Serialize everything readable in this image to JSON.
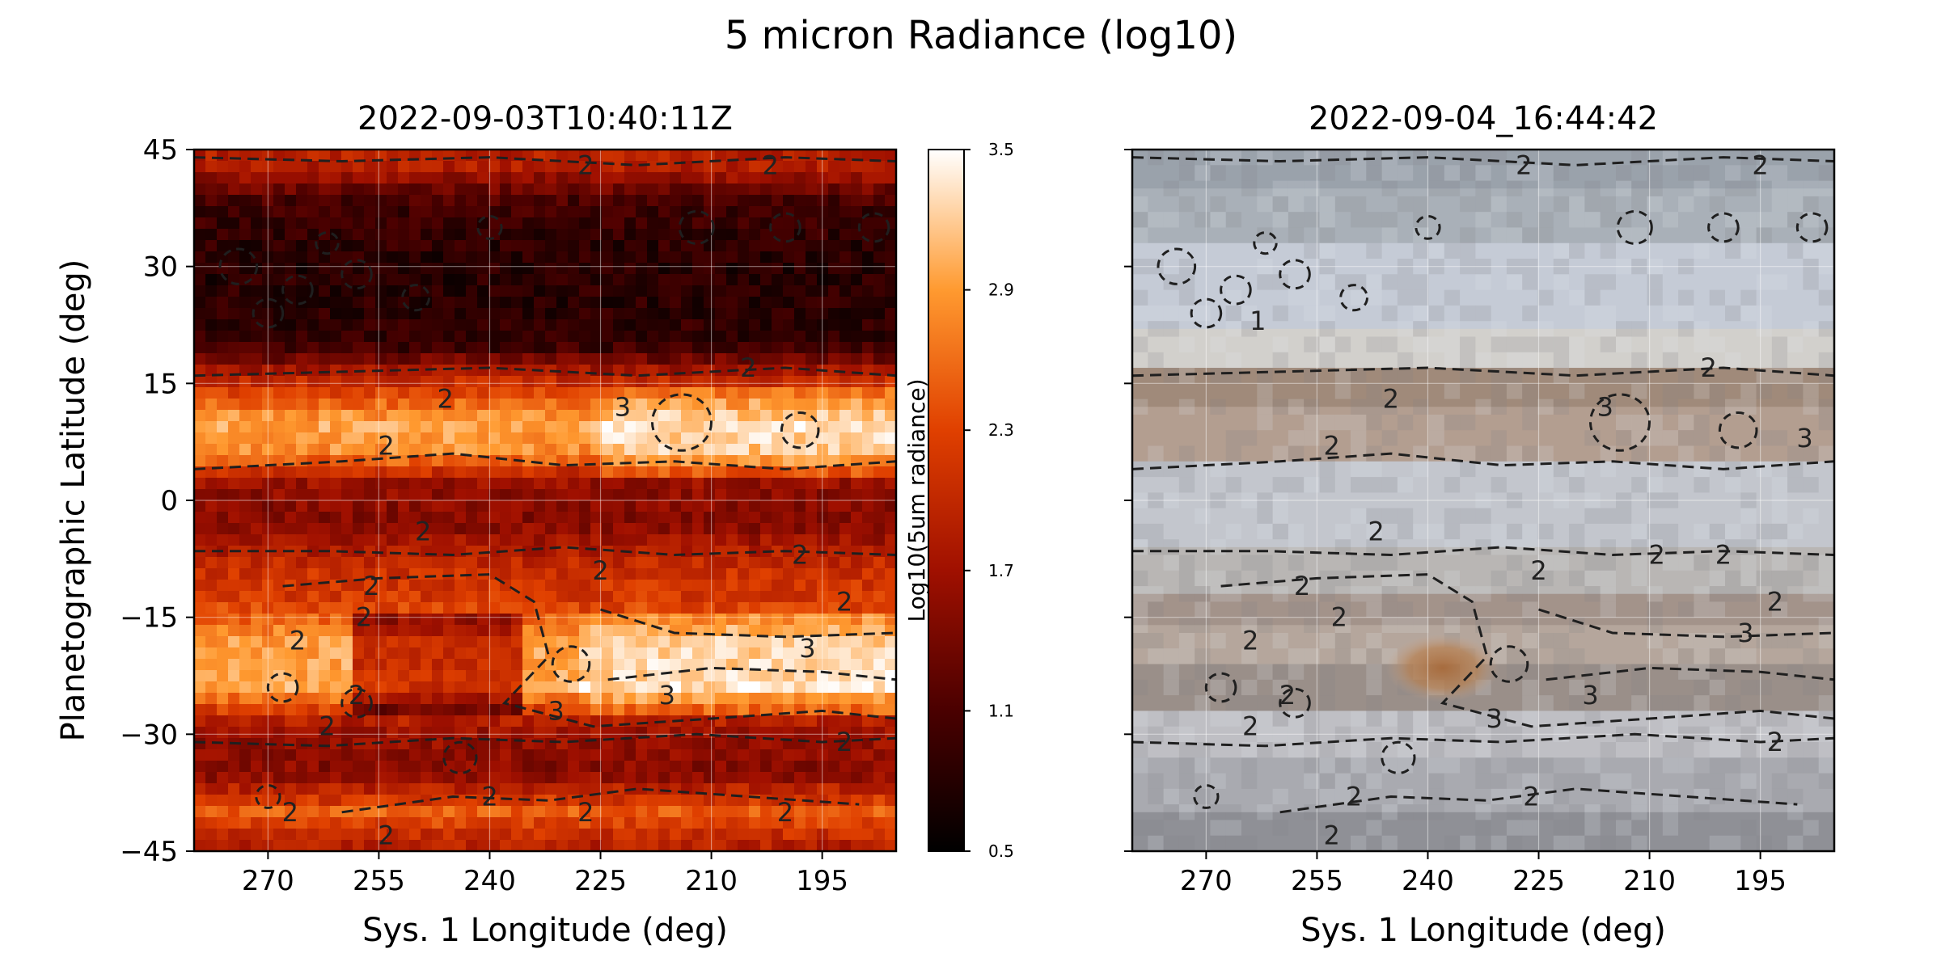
{
  "chart_data": {
    "type": "heatmap",
    "title": "5 micron Radiance (log10)",
    "panels": [
      {
        "title": "2022-09-03T10:40:11Z",
        "xlabel": "Sys. 1 Longitude (deg)",
        "ylabel": "Planetographic Latitude (deg)",
        "xlim": [
          280,
          185
        ],
        "ylim": [
          -45,
          45
        ],
        "xticks": [
          270,
          255,
          240,
          225,
          210,
          195
        ],
        "yticks": [
          45,
          30,
          15,
          0,
          -15,
          -30,
          -45
        ],
        "grid": true,
        "colormap": "gist_heat",
        "colorbar": {
          "label": "Log10(5um radiance)",
          "ticks": [
            "3.5",
            "2.9",
            "2.3",
            "1.7",
            "1.1",
            "0.5"
          ],
          "range": [
            0.5,
            3.5
          ]
        },
        "contour_levels": [
          {
            "label": "1",
            "value": 1
          },
          {
            "label": "2",
            "value": 2
          },
          {
            "label": "3",
            "value": 3
          }
        ]
      },
      {
        "title": "2022-09-04_16:44:42",
        "xlabel": "Sys. 1 Longitude (deg)",
        "xlim": [
          280,
          185
        ],
        "ylim": [
          -45,
          45
        ],
        "xticks": [
          270,
          255,
          240,
          225,
          210,
          195
        ],
        "grid": true,
        "background": "visible-light image",
        "contour_levels": [
          {
            "label": "1",
            "value": 1
          },
          {
            "label": "2",
            "value": 2
          },
          {
            "label": "3",
            "value": 3
          }
        ]
      }
    ],
    "bands": [
      {
        "lat": 43,
        "value": 1.9
      },
      {
        "lat": 38,
        "value": 1.0
      },
      {
        "lat": 30,
        "value": 0.8
      },
      {
        "lat": 20,
        "value": 0.9
      },
      {
        "lat": 16,
        "value": 1.9
      },
      {
        "lat": 10,
        "value": 3.0
      },
      {
        "lat": 6,
        "value": 2.8
      },
      {
        "lat": 2,
        "value": 1.6
      },
      {
        "lat": -3,
        "value": 1.5
      },
      {
        "lat": -9,
        "value": 2.1
      },
      {
        "lat": -13,
        "value": 2.2
      },
      {
        "lat": -18,
        "value": 2.9
      },
      {
        "lat": -24,
        "value": 3.0
      },
      {
        "lat": -29,
        "value": 1.7
      },
      {
        "lat": -35,
        "value": 1.5
      },
      {
        "lat": -40,
        "value": 2.5
      },
      {
        "lat": -44,
        "value": 1.9
      }
    ],
    "contour_labels": [
      {
        "panel": 0,
        "lon": 222,
        "lat": 12,
        "text": "3"
      },
      {
        "panel": 0,
        "lon": 216,
        "lat": -25,
        "text": "3"
      },
      {
        "panel": 0,
        "lon": 197,
        "lat": -19,
        "text": "3"
      },
      {
        "panel": 0,
        "lon": 231,
        "lat": -27,
        "text": "3"
      },
      {
        "panel": 0,
        "lon": 246,
        "lat": 13,
        "text": "2"
      },
      {
        "panel": 0,
        "lon": 254,
        "lat": 7,
        "text": "2"
      },
      {
        "panel": 0,
        "lon": 205,
        "lat": 17,
        "text": "2"
      },
      {
        "panel": 0,
        "lon": 249,
        "lat": -4,
        "text": "2"
      },
      {
        "panel": 0,
        "lon": 225,
        "lat": -9,
        "text": "2"
      },
      {
        "panel": 0,
        "lon": 198,
        "lat": -7,
        "text": "2"
      },
      {
        "panel": 0,
        "lon": 256,
        "lat": -11,
        "text": "2"
      },
      {
        "panel": 0,
        "lon": 257,
        "lat": -15,
        "text": "2"
      },
      {
        "panel": 0,
        "lon": 266,
        "lat": -18,
        "text": "2"
      },
      {
        "panel": 0,
        "lon": 258,
        "lat": -25,
        "text": "2"
      },
      {
        "panel": 0,
        "lon": 262,
        "lat": -29,
        "text": "2"
      },
      {
        "panel": 0,
        "lon": 192,
        "lat": -13,
        "text": "2"
      },
      {
        "panel": 0,
        "lon": 192,
        "lat": -31,
        "text": "2"
      },
      {
        "panel": 0,
        "lon": 240,
        "lat": -38,
        "text": "2"
      },
      {
        "panel": 0,
        "lon": 227,
        "lat": -40,
        "text": "2"
      },
      {
        "panel": 0,
        "lon": 200,
        "lat": -40,
        "text": "2"
      },
      {
        "panel": 0,
        "lon": 267,
        "lat": -40,
        "text": "2"
      },
      {
        "panel": 0,
        "lon": 254,
        "lat": -43,
        "text": "2"
      },
      {
        "panel": 0,
        "lon": 227,
        "lat": 43,
        "text": "2"
      },
      {
        "panel": 0,
        "lon": 202,
        "lat": 43,
        "text": "2"
      },
      {
        "panel": 1,
        "lon": 202,
        "lat": 17,
        "text": "2"
      },
      {
        "panel": 1,
        "lon": 245,
        "lat": 13,
        "text": "2"
      },
      {
        "panel": 1,
        "lon": 216,
        "lat": 12,
        "text": "3"
      },
      {
        "panel": 1,
        "lon": 253,
        "lat": 7,
        "text": "2"
      },
      {
        "panel": 1,
        "lon": 189,
        "lat": 8,
        "text": "3"
      },
      {
        "panel": 1,
        "lon": 247,
        "lat": -4,
        "text": "2"
      },
      {
        "panel": 1,
        "lon": 209,
        "lat": -7,
        "text": "2"
      },
      {
        "panel": 1,
        "lon": 225,
        "lat": -9,
        "text": "2"
      },
      {
        "panel": 1,
        "lon": 200,
        "lat": -7,
        "text": "2"
      },
      {
        "panel": 1,
        "lon": 257,
        "lat": -11,
        "text": "2"
      },
      {
        "panel": 1,
        "lon": 264,
        "lat": -18,
        "text": "2"
      },
      {
        "panel": 1,
        "lon": 252,
        "lat": -15,
        "text": "2"
      },
      {
        "panel": 1,
        "lon": 193,
        "lat": -13,
        "text": "2"
      },
      {
        "panel": 1,
        "lon": 197,
        "lat": -17,
        "text": "3"
      },
      {
        "panel": 1,
        "lon": 218,
        "lat": -25,
        "text": "3"
      },
      {
        "panel": 1,
        "lon": 259,
        "lat": -25,
        "text": "2"
      },
      {
        "panel": 1,
        "lon": 264,
        "lat": -29,
        "text": "2"
      },
      {
        "panel": 1,
        "lon": 193,
        "lat": -31,
        "text": "2"
      },
      {
        "panel": 1,
        "lon": 231,
        "lat": -28,
        "text": "3"
      },
      {
        "panel": 1,
        "lon": 226,
        "lat": -38,
        "text": "2"
      },
      {
        "panel": 1,
        "lon": 253,
        "lat": -43,
        "text": "2"
      },
      {
        "panel": 1,
        "lon": 250,
        "lat": -38,
        "text": "2"
      },
      {
        "panel": 1,
        "lon": 227,
        "lat": 43,
        "text": "2"
      },
      {
        "panel": 1,
        "lon": 195,
        "lat": 43,
        "text": "2"
      },
      {
        "panel": 1,
        "lon": 263,
        "lat": 23,
        "text": "1"
      }
    ]
  }
}
